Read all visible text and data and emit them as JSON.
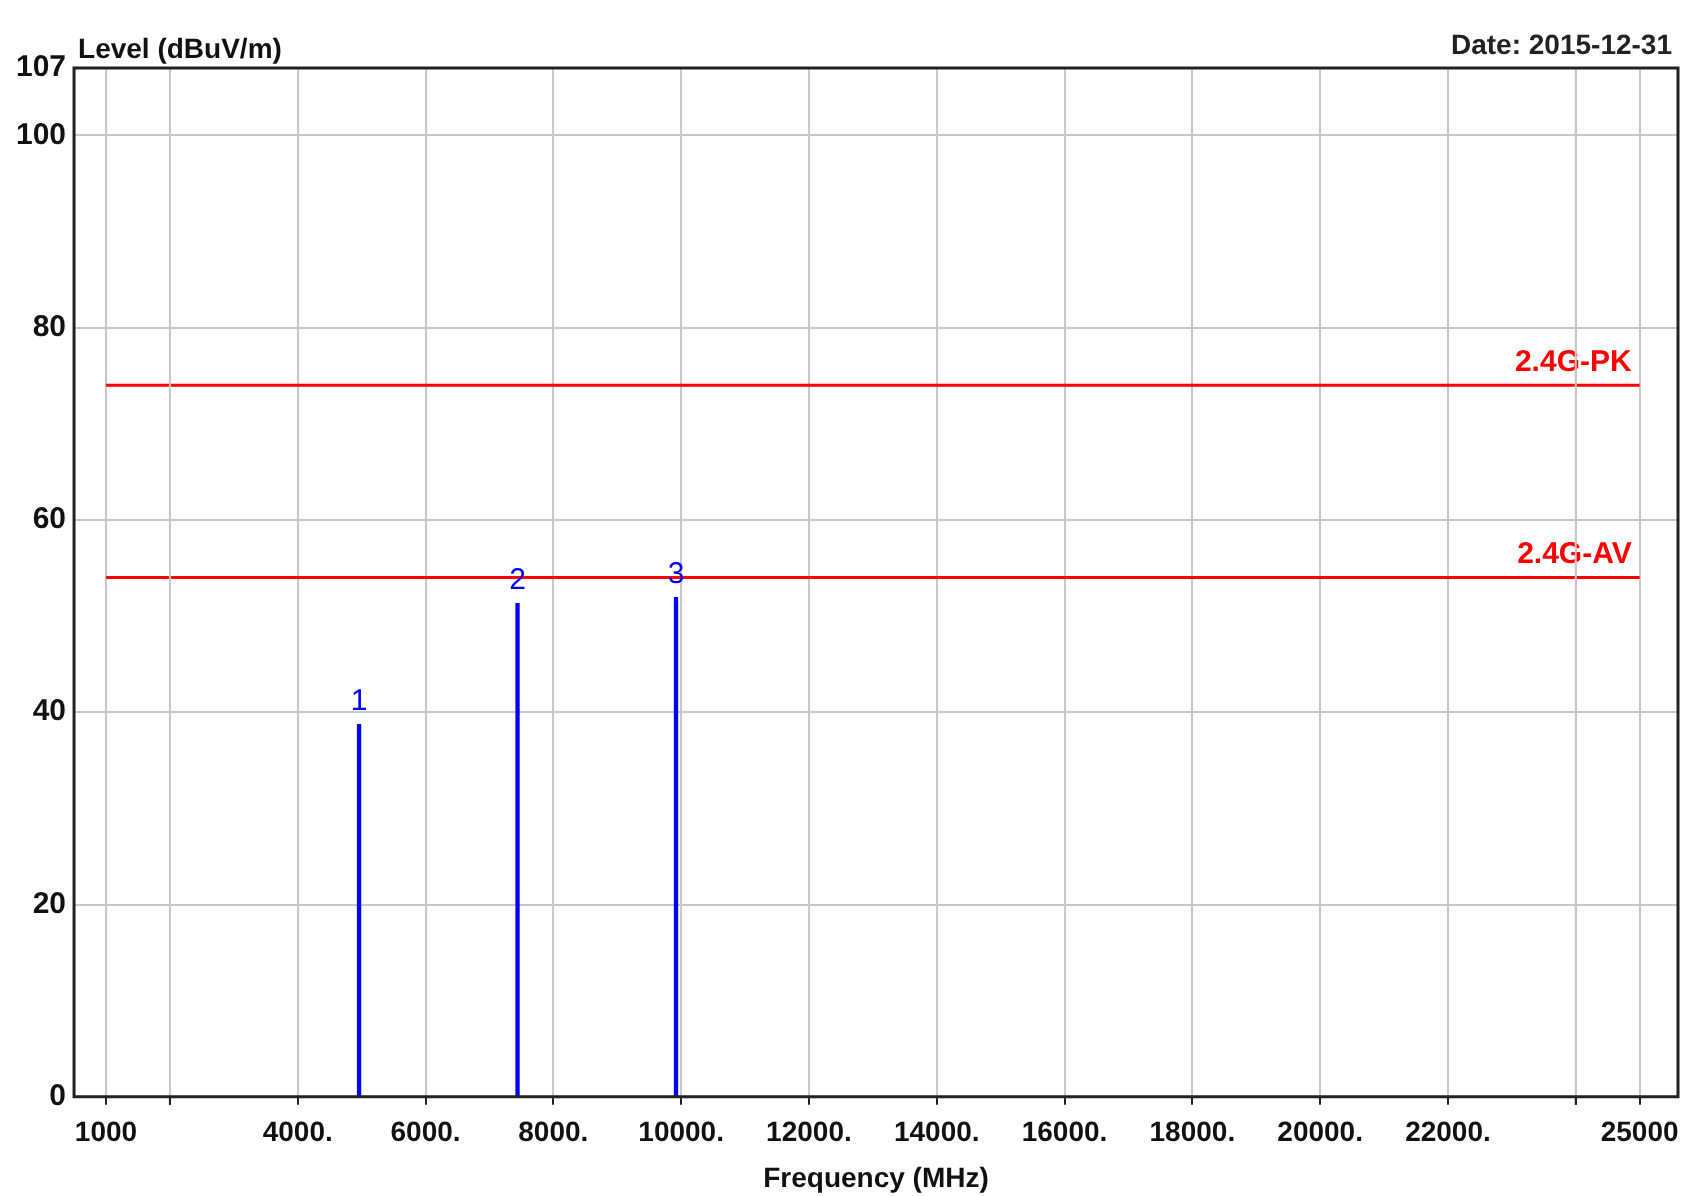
{
  "chart_data": {
    "type": "bar",
    "ylabel": "Level (dBuV/m)",
    "xlabel": "Frequency (MHz)",
    "x": [
      4960,
      7440,
      9920
    ],
    "series": [
      {
        "color": "#0000ff",
        "values": [
          38.7,
          51.3,
          51.9
        ]
      }
    ],
    "xlim": [
      500,
      25600
    ],
    "xticks": [
      1000,
      {
        "value": 2000,
        "label": null
      },
      {
        "value": 4000,
        "label": "4000."
      },
      {
        "value": 6000,
        "label": "6000."
      },
      {
        "value": 8000,
        "label": "8000."
      },
      {
        "value": 10000,
        "label": "10000."
      },
      {
        "value": 12000,
        "label": "12000."
      },
      {
        "value": 14000,
        "label": "14000."
      },
      {
        "value": 16000,
        "label": "16000."
      },
      {
        "value": 18000,
        "label": "18000."
      },
      {
        "value": 20000,
        "label": "20000."
      },
      {
        "value": 22000,
        "label": "22000."
      },
      {
        "value": 24000,
        "label": null
      },
      25000
    ],
    "ylim": [
      0,
      107
    ],
    "yticks": [
      0,
      20,
      40,
      60,
      80,
      100,
      107
    ],
    "grid": true,
    "legend": false,
    "ref_lines": [
      {
        "axis": "y",
        "value": 74,
        "label": "2.4G-PK",
        "color": "#ff0000"
      },
      {
        "axis": "y",
        "value": 54,
        "label": "2.4G-AV",
        "color": "#ff0000"
      }
    ],
    "annotations": [
      "Date: 2015-12-31",
      {
        "text": "1",
        "x": 4960,
        "y": 38.7
      },
      {
        "text": "2",
        "x": 7440,
        "y": 51.3
      },
      {
        "text": "3",
        "x": 9920,
        "y": 51.9
      }
    ]
  }
}
